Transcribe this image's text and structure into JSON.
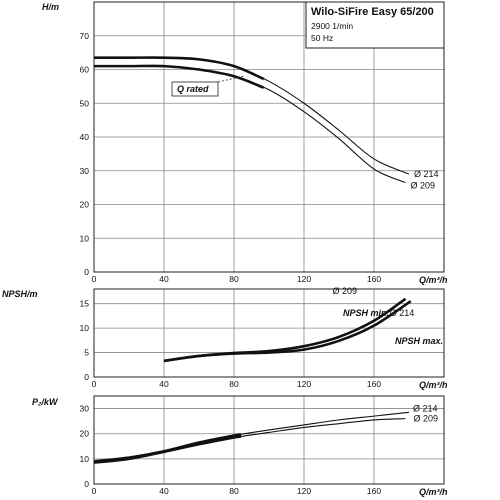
{
  "title_box": {
    "title": "Wilo-SiFire Easy 65/200",
    "speed": "2900 1/min",
    "frequency": "50 Hz"
  },
  "annotation": {
    "q_rated": "Q rated"
  },
  "chart_data": [
    {
      "type": "line",
      "id": "head",
      "ylabel": "H/m",
      "xlabel": "Q/m³/h",
      "xlim": [
        0,
        200
      ],
      "ylim": [
        0,
        80
      ],
      "xticks": [
        0,
        40,
        80,
        120,
        160
      ],
      "yticks": [
        0,
        10,
        20,
        30,
        40,
        50,
        60,
        70
      ],
      "grid": true,
      "series": [
        {
          "name": "Ø 214",
          "x": [
            0,
            20,
            40,
            60,
            80,
            100,
            120,
            140,
            160,
            180
          ],
          "y": [
            63.5,
            63.5,
            63.5,
            63,
            61,
            56.5,
            50,
            42,
            33.5,
            29
          ]
        },
        {
          "name": "Ø 209",
          "x": [
            0,
            20,
            40,
            60,
            80,
            100,
            120,
            140,
            160,
            178
          ],
          "y": [
            61,
            61,
            61,
            60,
            58,
            54,
            47.5,
            39.5,
            30.5,
            26.5
          ]
        }
      ]
    },
    {
      "type": "line",
      "id": "npsh",
      "ylabel": "NPSH/m",
      "xlabel": "Q/m³/h",
      "xlim": [
        0,
        200
      ],
      "ylim": [
        0,
        18
      ],
      "xticks": [
        0,
        40,
        80,
        120,
        160
      ],
      "yticks": [
        0,
        5,
        10,
        15
      ],
      "grid": true,
      "labels": [
        "NPSH min.",
        "NPSH max."
      ],
      "series": [
        {
          "name": "Ø 209",
          "x": [
            40,
            60,
            80,
            100,
            120,
            140,
            160,
            178
          ],
          "y": [
            3.3,
            4.3,
            4.9,
            5.3,
            6.3,
            8.2,
            11.5,
            16
          ]
        },
        {
          "name": "Ø 214",
          "x": [
            40,
            60,
            80,
            100,
            120,
            140,
            160,
            181
          ],
          "y": [
            3.3,
            4.3,
            4.8,
            5,
            5.6,
            7.4,
            10.5,
            15.5
          ]
        }
      ]
    },
    {
      "type": "line",
      "id": "power",
      "ylabel": "P₂/kW",
      "xlabel": "Q/m³/h",
      "xlim": [
        0,
        200
      ],
      "ylim": [
        0,
        35
      ],
      "xticks": [
        0,
        40,
        80,
        120,
        160
      ],
      "yticks": [
        0,
        10,
        20,
        30
      ],
      "grid": true,
      "series": [
        {
          "name": "Ø 214",
          "x": [
            0,
            20,
            40,
            60,
            80,
            100,
            120,
            140,
            160,
            180
          ],
          "y": [
            9,
            10.5,
            13,
            16.5,
            19.3,
            21.5,
            23.5,
            25.5,
            27,
            28.5
          ]
        },
        {
          "name": "Ø 209",
          "x": [
            0,
            20,
            40,
            60,
            80,
            100,
            120,
            140,
            160,
            178
          ],
          "y": [
            8.5,
            10,
            12.8,
            15.8,
            18.5,
            20.5,
            22.5,
            24,
            25.5,
            26
          ]
        }
      ]
    }
  ]
}
